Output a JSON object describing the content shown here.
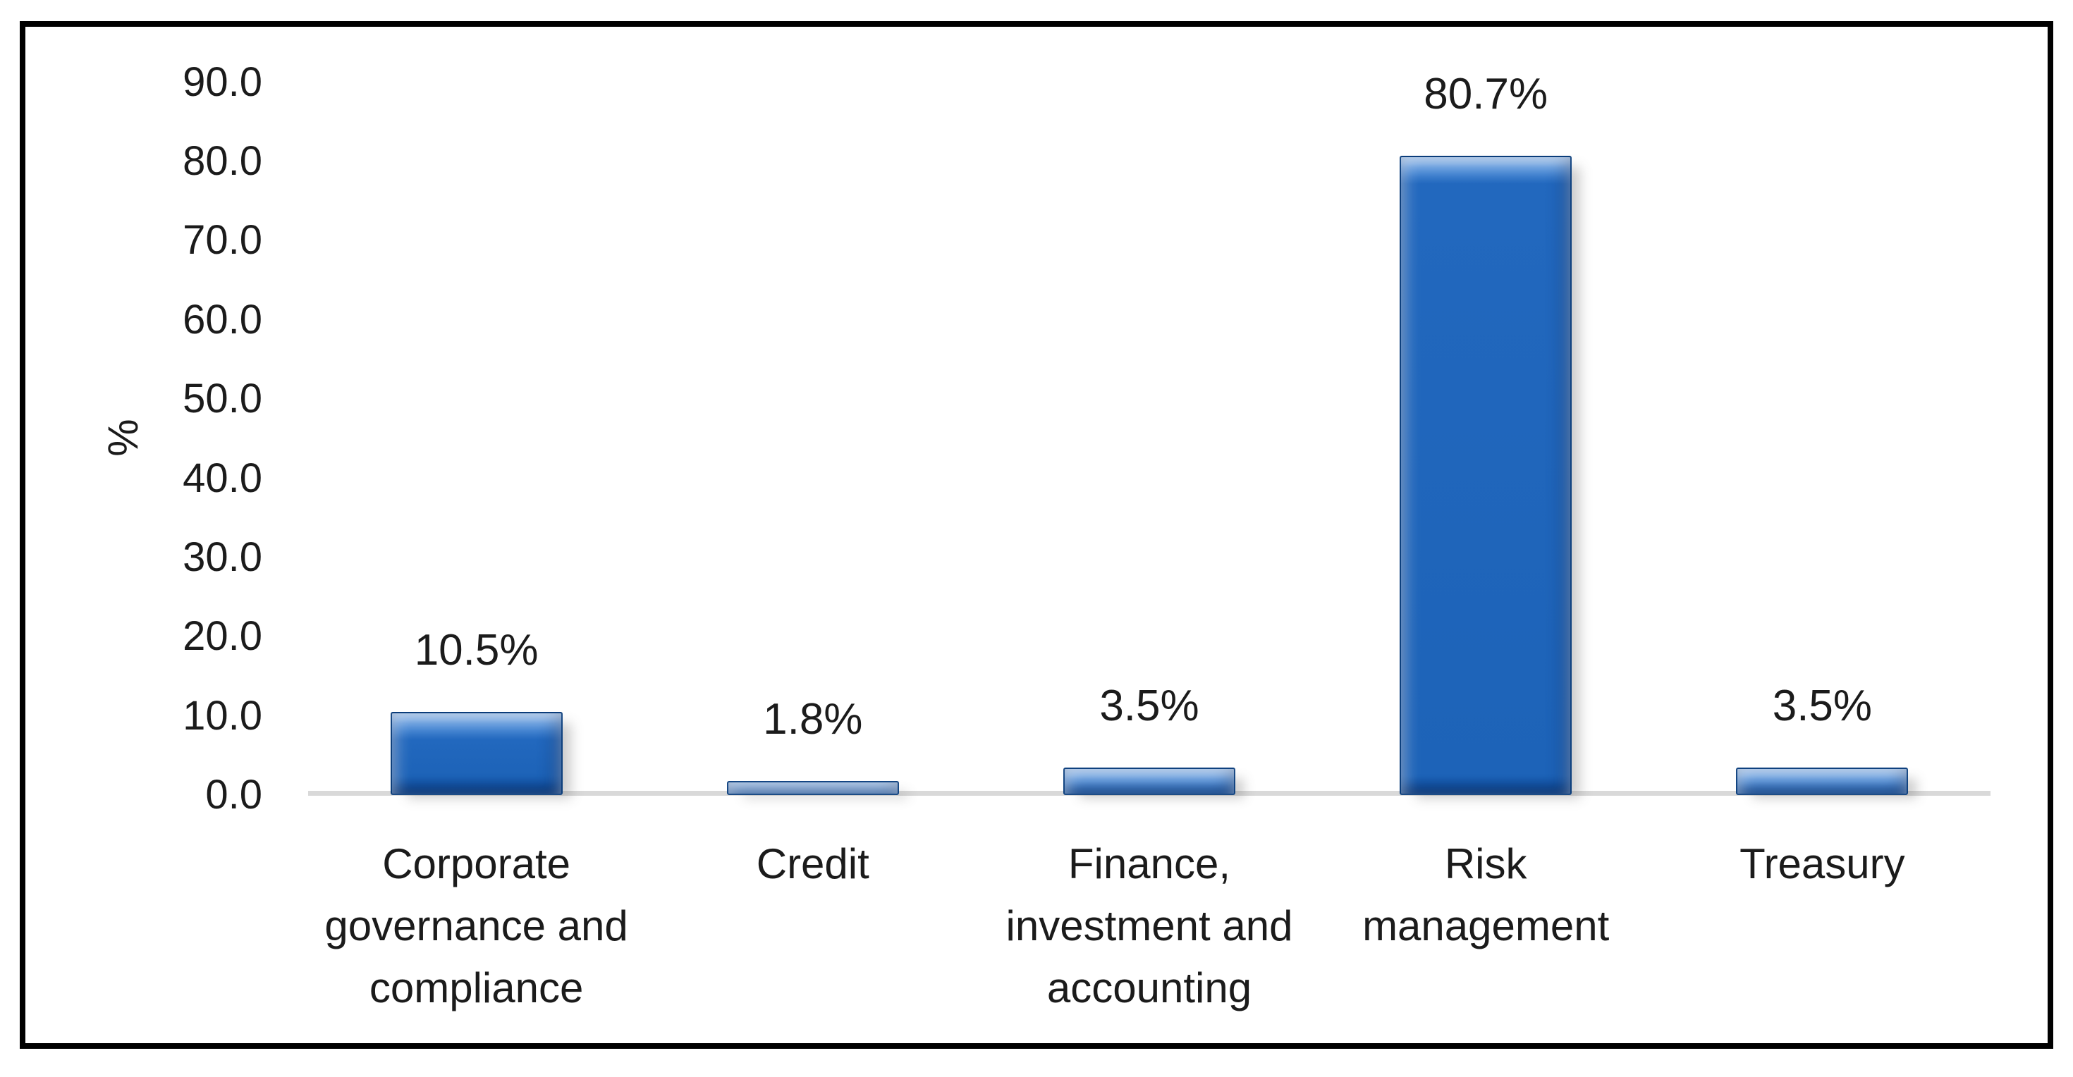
{
  "chart_data": {
    "type": "bar",
    "title": "",
    "xlabel": "",
    "ylabel": "%",
    "categories": [
      "Corporate governance and compliance",
      "Credit",
      "Finance, investment and accounting",
      "Risk management",
      "Treasury"
    ],
    "category_lines": [
      [
        "Corporate",
        "governance and",
        "compliance"
      ],
      [
        "Credit"
      ],
      [
        "Finance,",
        "investment and",
        "accounting"
      ],
      [
        "Risk",
        "management"
      ],
      [
        "Treasury"
      ]
    ],
    "values": [
      10.5,
      1.8,
      3.5,
      80.7,
      3.5
    ],
    "data_labels": [
      "10.5%",
      "1.8%",
      "3.5%",
      "80.7%",
      "3.5%"
    ],
    "y_ticks": [
      "90.0",
      "80.0",
      "70.0",
      "60.0",
      "50.0",
      "40.0",
      "30.0",
      "20.0",
      "10.0",
      "0.0"
    ],
    "y_tick_values": [
      90,
      80,
      70,
      60,
      50,
      40,
      30,
      20,
      10,
      0
    ],
    "ylim": [
      0,
      90
    ],
    "grid": "off",
    "legend": "none",
    "colors": {
      "bar_fill": "#1C66BE",
      "bar_highlight": "#8AB9F0",
      "bar_edge": "#0A3A73",
      "axis_line": "#D9D9D9",
      "text": "#1B1B1B",
      "frame_border": "#000000",
      "background": "#FFFFFF"
    }
  }
}
